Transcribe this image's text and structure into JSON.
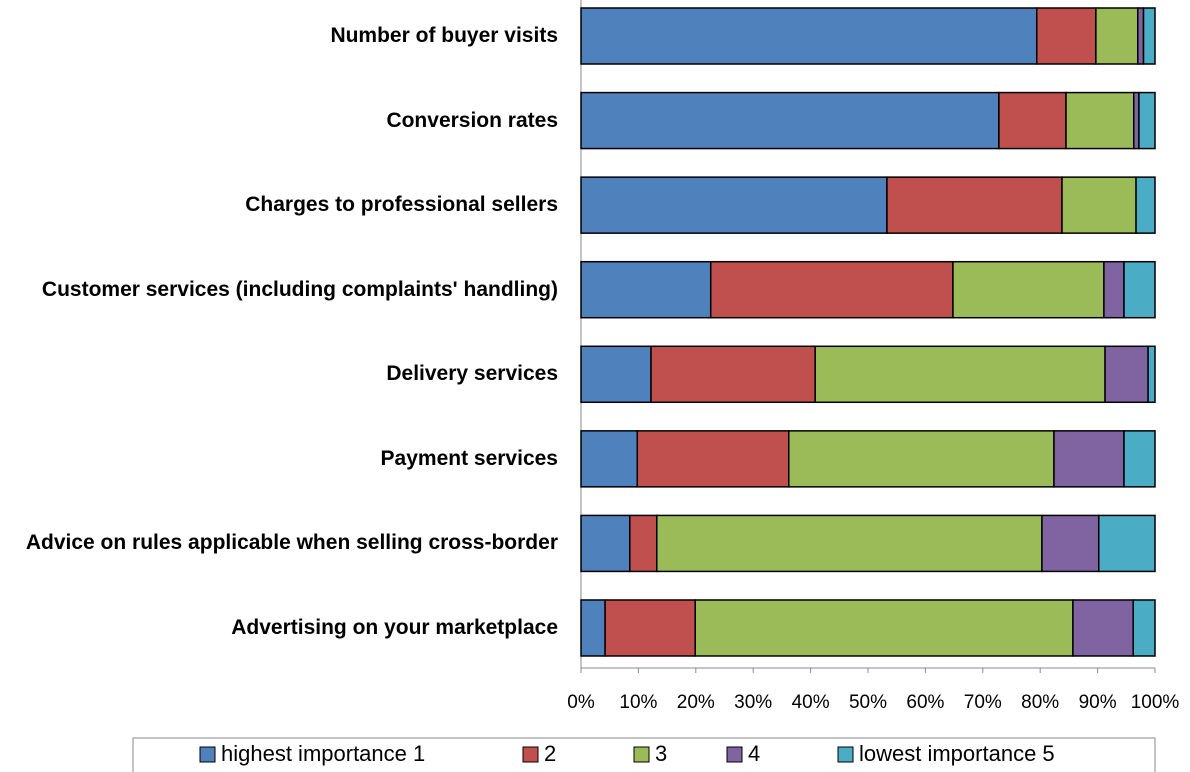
{
  "chart_data": {
    "type": "stacked-bar-horizontal",
    "categories": [
      "Number of buyer visits",
      "Conversion rates",
      "Charges to professional sellers",
      "Customer services (including complaints' handling)",
      "Delivery services",
      "Payment services",
      "Advice on rules applicable when selling cross-border",
      "Advertising on your marketplace"
    ],
    "series": [
      {
        "name": "highest importance 1",
        "color": "#4f81bd",
        "values": [
          79.4,
          72.8,
          53.3,
          22.6,
          12.2,
          9.8,
          8.5,
          4.2
        ]
      },
      {
        "name": "2",
        "color": "#c0504d",
        "values": [
          10.3,
          11.7,
          30.5,
          42.2,
          28.6,
          26.4,
          4.7,
          15.7
        ]
      },
      {
        "name": "3",
        "color": "#9bbb59",
        "values": [
          7.3,
          11.8,
          12.9,
          26.3,
          50.5,
          46.2,
          67.1,
          65.8
        ]
      },
      {
        "name": "4",
        "color": "#8064a2",
        "values": [
          1.0,
          0.9,
          0,
          3.5,
          7.5,
          12.2,
          9.9,
          10.5
        ]
      },
      {
        "name": "lowest importance 5",
        "color": "#4bacc6",
        "values": [
          2.0,
          2.8,
          3.3,
          5.4,
          1.2,
          5.4,
          9.8,
          3.8
        ]
      }
    ],
    "xlim": [
      0,
      100
    ],
    "xticks": [
      {
        "value": 0,
        "label": "0%"
      },
      {
        "value": 10,
        "label": "10%"
      },
      {
        "value": 20,
        "label": "20%"
      },
      {
        "value": 30,
        "label": "30%"
      },
      {
        "value": 40,
        "label": "40%"
      },
      {
        "value": 50,
        "label": "50%"
      },
      {
        "value": 60,
        "label": "60%"
      },
      {
        "value": 70,
        "label": "70%"
      },
      {
        "value": 80,
        "label": "80%"
      },
      {
        "value": 90,
        "label": "90%"
      },
      {
        "value": 100,
        "label": "100%"
      }
    ],
    "legend": "bottom"
  }
}
